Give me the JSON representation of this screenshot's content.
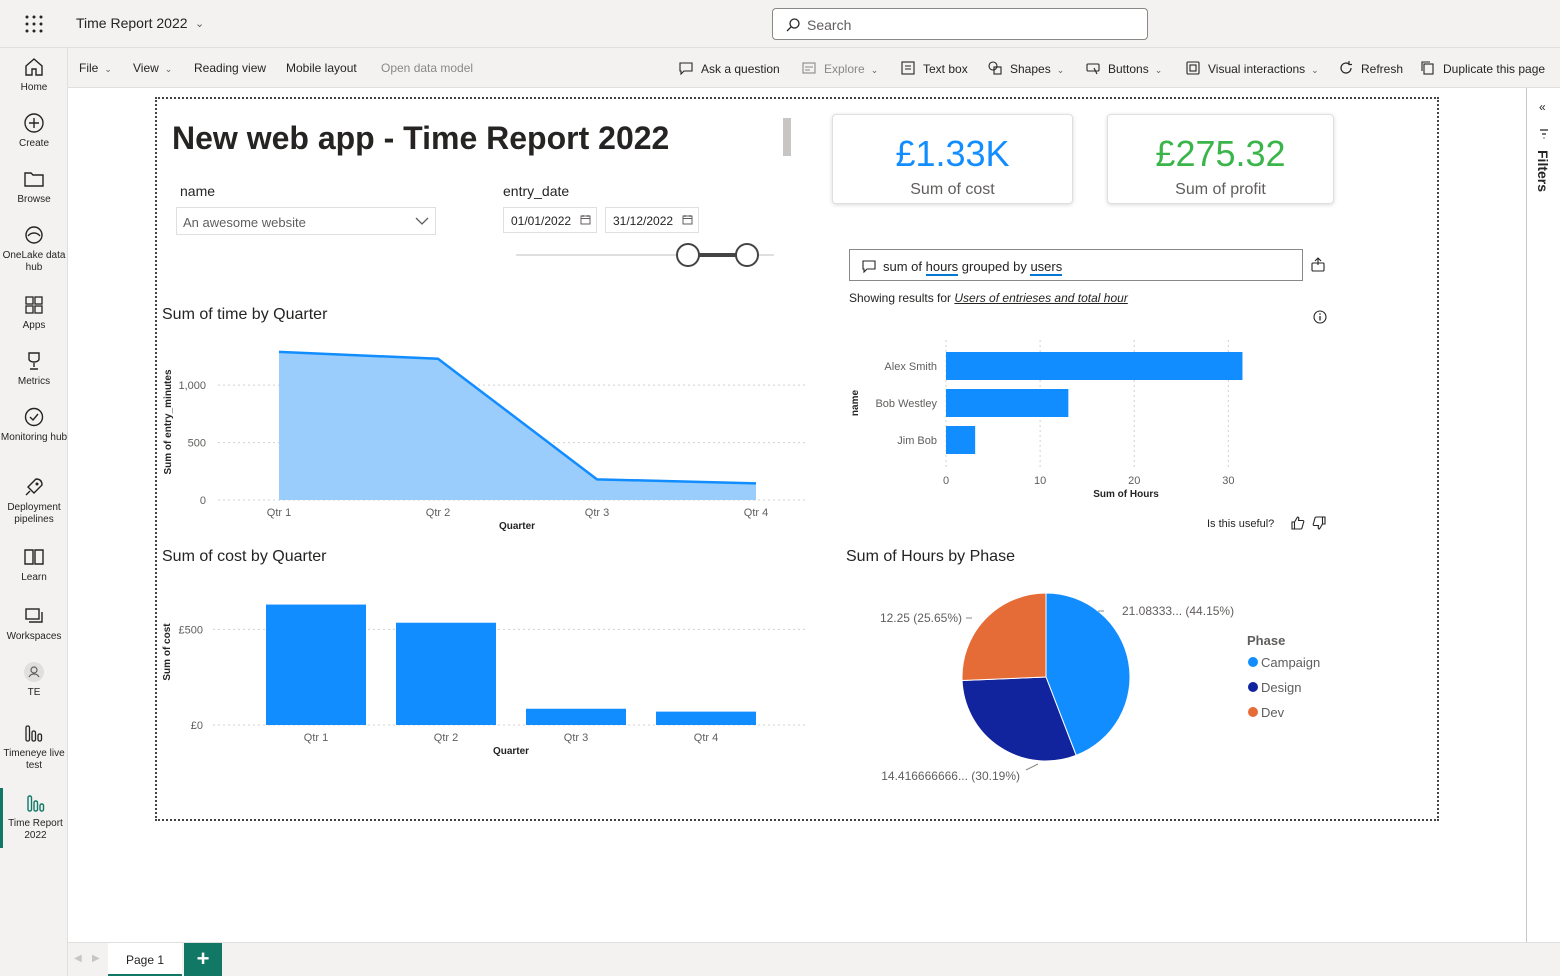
{
  "app": {
    "title": "Time Report 2022",
    "search_placeholder": "Search"
  },
  "leftnav": [
    {
      "label": "Home",
      "icon": "home-icon"
    },
    {
      "label": "Create",
      "icon": "plus-circle-icon"
    },
    {
      "label": "Browse",
      "icon": "folder-icon"
    },
    {
      "label": "OneLake data hub",
      "icon": "onelake-icon"
    },
    {
      "label": "Apps",
      "icon": "apps-icon"
    },
    {
      "label": "Metrics",
      "icon": "trophy-icon"
    },
    {
      "label": "Monitoring hub",
      "icon": "monitor-icon"
    },
    {
      "label": "Deployment pipelines",
      "icon": "rocket-icon"
    },
    {
      "label": "Learn",
      "icon": "book-icon"
    },
    {
      "label": "Workspaces",
      "icon": "workspaces-icon"
    },
    {
      "label": "TE",
      "icon": "te-workspace-icon"
    },
    {
      "label": "Timeneye live test",
      "icon": "report-icon"
    },
    {
      "label": "Time Report 2022",
      "icon": "report-icon"
    }
  ],
  "ribbon": {
    "file": "File",
    "view": "View",
    "reading_view": "Reading view",
    "mobile_layout": "Mobile layout",
    "open_data_model": "Open data model",
    "ask_question": "Ask a question",
    "explore": "Explore",
    "text_box": "Text box",
    "shapes": "Shapes",
    "buttons": "Buttons",
    "visual_interactions": "Visual interactions",
    "refresh": "Refresh",
    "duplicate": "Duplicate this page"
  },
  "filters": {
    "label": "Filters"
  },
  "pages": {
    "tab1": "Page 1",
    "add": "+"
  },
  "report": {
    "title": "New web app - Time Report 2022",
    "name_slicer": {
      "label": "name",
      "value": "An awesome website"
    },
    "date_slicer": {
      "label": "entry_date",
      "start": "01/01/2022",
      "end": "31/12/2022"
    },
    "kpi_cost": {
      "value": "£1.33K",
      "label": "Sum of cost",
      "color": "#118dff"
    },
    "kpi_profit": {
      "value": "£275.32",
      "label": "Sum of profit",
      "color": "#3ab54a"
    },
    "qa": {
      "q_part1": "sum of ",
      "q_hours": "hours",
      "q_part2": " grouped by ",
      "q_users": "users",
      "result_prefix": "Showing results for ",
      "result_link": "Users of entrieses and total hour",
      "useful": "Is this useful?"
    }
  },
  "chart_data": [
    {
      "type": "area",
      "title": "Sum of time by Quarter",
      "xlabel": "Quarter",
      "ylabel": "Sum of entry_minutes",
      "categories": [
        "Qtr 1",
        "Qtr 2",
        "Qtr 3",
        "Qtr 4"
      ],
      "values": [
        1290,
        1230,
        180,
        145
      ],
      "ylim": [
        0,
        1350
      ],
      "yticks": [
        {
          "v": 0,
          "label": "0"
        },
        {
          "v": 500,
          "label": "500"
        },
        {
          "v": 1000,
          "label": "1,000"
        }
      ],
      "color": "#118dff",
      "fill": "#9acdfb"
    },
    {
      "type": "bar",
      "title": "Sum of cost by Quarter",
      "xlabel": "Quarter",
      "ylabel": "Sum of cost",
      "categories": [
        "Qtr 1",
        "Qtr 2",
        "Qtr 3",
        "Qtr 4"
      ],
      "values": [
        630,
        535,
        85,
        70
      ],
      "ylim": [
        0,
        680
      ],
      "yticks": [
        {
          "v": 0,
          "label": "£0"
        },
        {
          "v": 500,
          "label": "£500"
        }
      ],
      "color": "#118dff"
    },
    {
      "type": "bar",
      "orientation": "horizontal",
      "title": "",
      "xlabel": "Sum of Hours",
      "ylabel": "name",
      "categories": [
        "Alex Smith",
        "Bob Westley",
        "Jim Bob"
      ],
      "values": [
        31.5,
        13,
        3.1
      ],
      "xlim": [
        0,
        34
      ],
      "xticks": [
        0,
        10,
        20,
        30
      ],
      "color": "#118dff"
    },
    {
      "type": "pie",
      "title": "Sum of Hours by Phase",
      "legend_title": "Phase",
      "series": [
        {
          "name": "Campaign",
          "value": 21.0833,
          "label": "21.08333... (44.15%)",
          "color": "#118dff"
        },
        {
          "name": "Design",
          "value": 14.4167,
          "label": "14.416666666... (30.19%)",
          "color": "#12239e"
        },
        {
          "name": "Dev",
          "value": 12.25,
          "label": "12.25 (25.65%)",
          "color": "#e66c37"
        }
      ]
    }
  ]
}
